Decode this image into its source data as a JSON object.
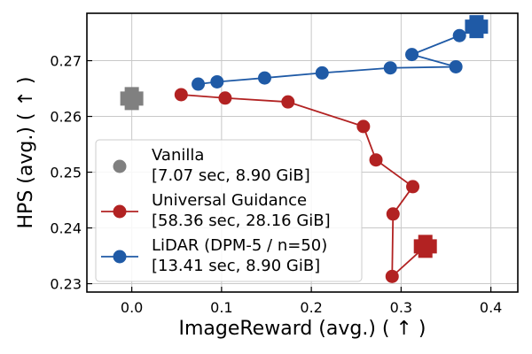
{
  "chart_data": {
    "type": "scatter",
    "xlabel": "ImageReward (avg.) ( ↑ )",
    "ylabel": "HPS (avg.) ( ↑ )",
    "xlim": [
      -0.05,
      0.43
    ],
    "ylim": [
      0.2285,
      0.2785
    ],
    "xticks": [
      0.0,
      0.1,
      0.2,
      0.3,
      0.4
    ],
    "xtick_labels": [
      "0.0",
      "0.1",
      "0.2",
      "0.3",
      "0.4"
    ],
    "yticks": [
      0.23,
      0.24,
      0.25,
      0.26,
      0.27
    ],
    "ytick_labels": [
      "0.23",
      "0.24",
      "0.25",
      "0.26",
      "0.27"
    ],
    "grid": true,
    "legend_position": "lower-left",
    "series": [
      {
        "name": "Vanilla",
        "legend_lines": [
          "Vanilla",
          "[7.07 sec, 8.90 GiB]"
        ],
        "color": "#808080",
        "connected": false,
        "points": [],
        "final": [
          0.0,
          0.2632
        ]
      },
      {
        "name": "Universal Guidance",
        "legend_lines": [
          "Universal Guidance",
          "[58.36 sec, 28.16 GiB]"
        ],
        "color": "#b22222",
        "connected": true,
        "points": [
          [
            0.055,
            0.2639
          ],
          [
            0.104,
            0.2633
          ],
          [
            0.174,
            0.2626
          ],
          [
            0.258,
            0.2582
          ],
          [
            0.272,
            0.2522
          ],
          [
            0.313,
            0.2474
          ],
          [
            0.291,
            0.2425
          ],
          [
            0.29,
            0.2313
          ]
        ],
        "final": [
          0.327,
          0.2367
        ]
      },
      {
        "name": "LiDAR (DPM-5 / n=50)",
        "legend_lines": [
          "LiDAR (DPM-5 / n=50)",
          "[13.41 sec, 8.90 GiB]"
        ],
        "color": "#1f5aa6",
        "connected": true,
        "points": [
          [
            0.074,
            0.2658
          ],
          [
            0.095,
            0.2662
          ],
          [
            0.148,
            0.2669
          ],
          [
            0.212,
            0.2678
          ],
          [
            0.288,
            0.2687
          ],
          [
            0.361,
            0.2689
          ],
          [
            0.312,
            0.2711
          ],
          [
            0.365,
            0.2745
          ]
        ],
        "final": [
          0.384,
          0.2761
        ]
      }
    ]
  }
}
